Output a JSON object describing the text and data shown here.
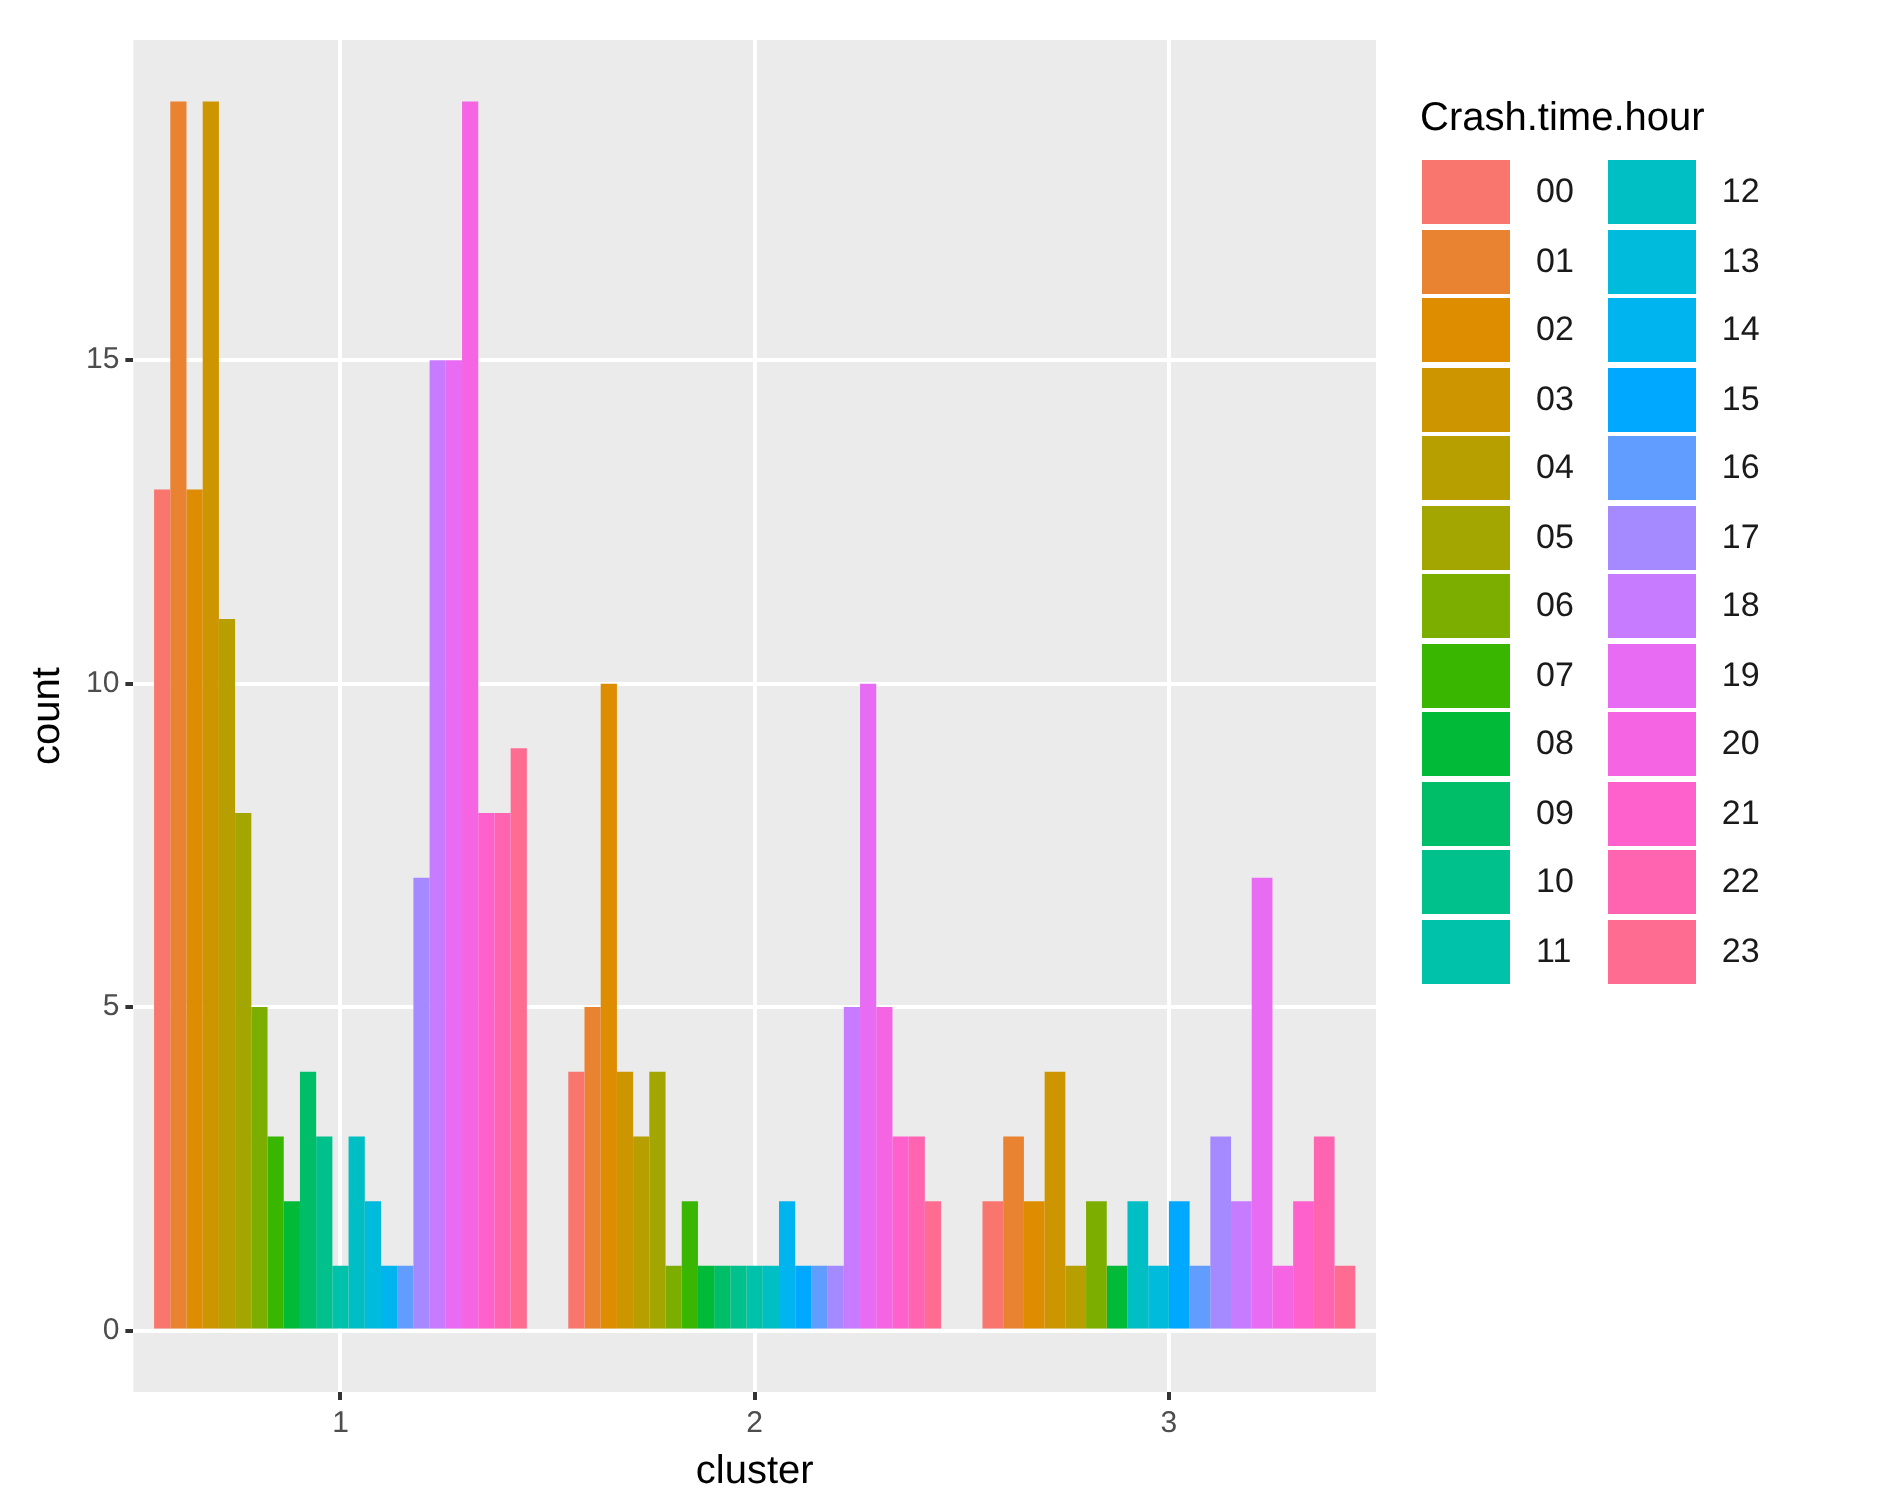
{
  "chart_data": {
    "type": "bar",
    "xlabel": "cluster",
    "ylabel": "count",
    "legend_title": "Crash.time.hour",
    "categories": [
      "1",
      "2",
      "3"
    ],
    "ylim": [
      -0.95,
      19.95
    ],
    "yticks": [
      0,
      5,
      10,
      15
    ],
    "grid": true,
    "legend": "right",
    "series": [
      {
        "name": "00",
        "color": "#f8766d",
        "values": [
          13,
          4,
          2
        ]
      },
      {
        "name": "01",
        "color": "#ea8331",
        "values": [
          19,
          5,
          3
        ]
      },
      {
        "name": "02",
        "color": "#de8c00",
        "values": [
          13,
          10,
          2
        ]
      },
      {
        "name": "03",
        "color": "#cd9600",
        "values": [
          19,
          4,
          4
        ]
      },
      {
        "name": "04",
        "color": "#b79f00",
        "values": [
          11,
          3,
          1
        ]
      },
      {
        "name": "05",
        "color": "#a3a500",
        "values": [
          8,
          4,
          null
        ]
      },
      {
        "name": "06",
        "color": "#7cae00",
        "values": [
          5,
          1,
          2
        ]
      },
      {
        "name": "07",
        "color": "#39b600",
        "values": [
          3,
          2,
          null
        ]
      },
      {
        "name": "08",
        "color": "#00ba38",
        "values": [
          2,
          1,
          1
        ]
      },
      {
        "name": "09",
        "color": "#00be67",
        "values": [
          4,
          1,
          null
        ]
      },
      {
        "name": "10",
        "color": "#00c08b",
        "values": [
          3,
          1,
          null
        ]
      },
      {
        "name": "11",
        "color": "#00c1a9",
        "values": [
          1,
          1,
          null
        ]
      },
      {
        "name": "12",
        "color": "#00bfc4",
        "values": [
          3,
          1,
          2
        ]
      },
      {
        "name": "13",
        "color": "#00bbdb",
        "values": [
          2,
          null,
          1
        ]
      },
      {
        "name": "14",
        "color": "#00b4f0",
        "values": [
          1,
          2,
          null
        ]
      },
      {
        "name": "15",
        "color": "#00a9ff",
        "values": [
          null,
          1,
          2
        ]
      },
      {
        "name": "16",
        "color": "#619cff",
        "values": [
          1,
          1,
          1
        ]
      },
      {
        "name": "17",
        "color": "#a58aff",
        "values": [
          7,
          1,
          3
        ]
      },
      {
        "name": "18",
        "color": "#c77cff",
        "values": [
          15,
          5,
          2
        ]
      },
      {
        "name": "19",
        "color": "#e76bf3",
        "values": [
          15,
          10,
          7
        ]
      },
      {
        "name": "20",
        "color": "#f564e3",
        "values": [
          19,
          5,
          1
        ]
      },
      {
        "name": "21",
        "color": "#ff61cc",
        "values": [
          8,
          3,
          2
        ]
      },
      {
        "name": "22",
        "color": "#ff64b0",
        "values": [
          8,
          3,
          3
        ]
      },
      {
        "name": "23",
        "color": "#ff6c91",
        "values": [
          9,
          2,
          1
        ]
      }
    ]
  }
}
